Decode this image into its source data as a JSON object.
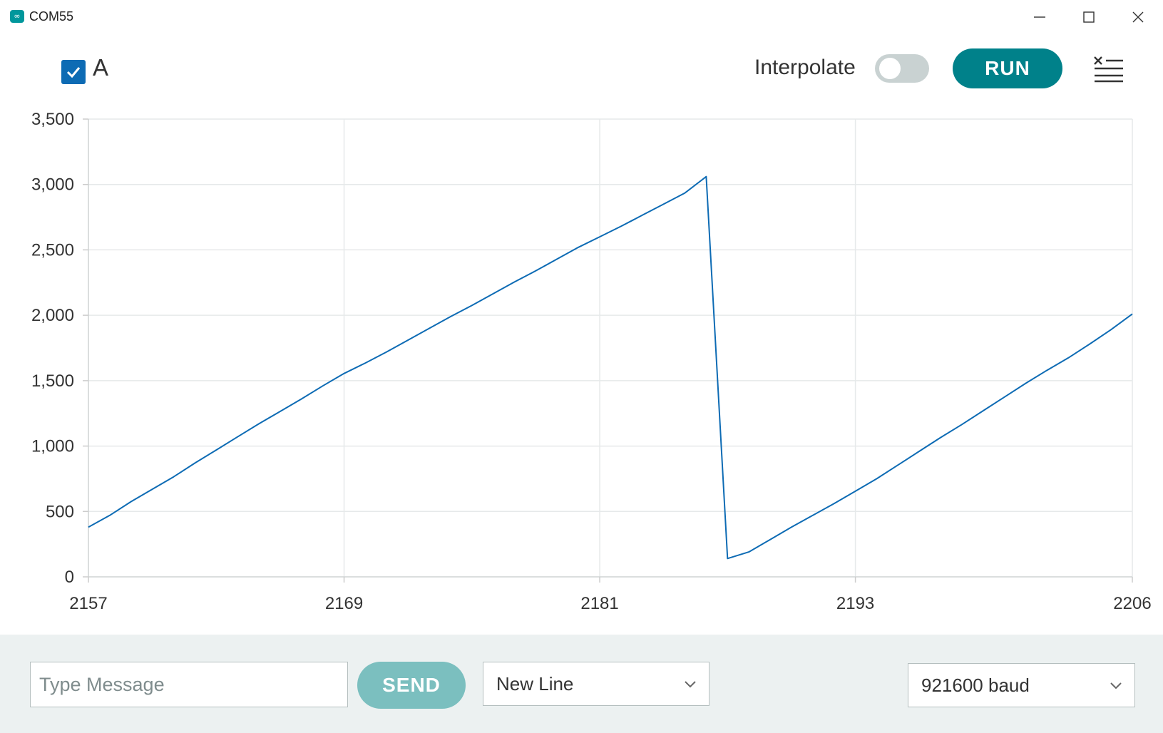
{
  "window": {
    "title": "COM55",
    "app_icon": "arduino-infinity-icon",
    "controls": [
      "minimize-icon",
      "maximize-icon",
      "close-icon"
    ]
  },
  "toolbar": {
    "series_checkbox": {
      "checked": true,
      "label": "A",
      "color": "#0d6bb4"
    },
    "interpolate": {
      "label": "Interpolate",
      "enabled": false
    },
    "run_label": "RUN",
    "clear_icon": "clear-lines-icon"
  },
  "chart_data": {
    "type": "line",
    "title": "",
    "xlabel": "",
    "ylabel": "",
    "xlim": [
      2157,
      2206
    ],
    "ylim": [
      0,
      3500
    ],
    "x_ticks": [
      "2157",
      "2169",
      "2181",
      "2193",
      "2206"
    ],
    "y_ticks": [
      "0",
      "500",
      "1,000",
      "1,500",
      "2,000",
      "2,500",
      "3,000",
      "3,500"
    ],
    "grid": true,
    "series": [
      {
        "color": "#0d6bb4",
        "x": [
          2157,
          2158,
          2159,
          2160,
          2161,
          2162,
          2163,
          2164,
          2165,
          2166,
          2167,
          2168,
          2169,
          2170,
          2171,
          2172,
          2173,
          2174,
          2175,
          2176,
          2177,
          2178,
          2179,
          2180,
          2181,
          2182,
          2183,
          2184,
          2185,
          2186,
          2187,
          2188,
          2189,
          2190,
          2191,
          2192,
          2193,
          2194,
          2195,
          2196,
          2197,
          2198,
          2199,
          2200,
          2201,
          2202,
          2203,
          2204,
          2205,
          2206
        ],
        "y": [
          380,
          470,
          575,
          670,
          765,
          870,
          970,
          1070,
          1170,
          1265,
          1360,
          1460,
          1555,
          1635,
          1720,
          1810,
          1900,
          1990,
          2075,
          2165,
          2255,
          2340,
          2430,
          2520,
          2600,
          2680,
          2765,
          2850,
          2935,
          3060,
          140,
          190,
          285,
          380,
          470,
          560,
          655,
          750,
          855,
          960,
          1065,
          1165,
          1270,
          1375,
          1480,
          1580,
          1675,
          1780,
          1890,
          2010
        ]
      }
    ]
  },
  "bottom": {
    "message_placeholder": "Type Message",
    "message_value": "",
    "send_label": "SEND",
    "line_ending": "New Line",
    "baud_rate": "921600 baud"
  }
}
